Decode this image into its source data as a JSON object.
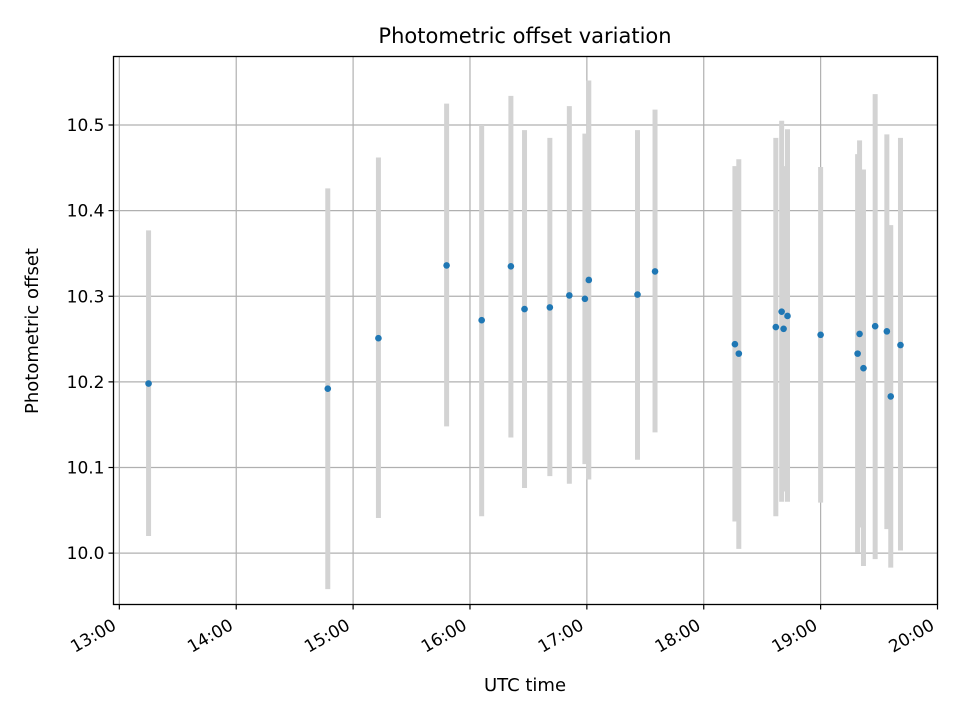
{
  "chart_data": {
    "type": "scatter",
    "title": "Photometric offset variation",
    "xlabel": "UTC time",
    "ylabel": "Photometric offset",
    "x_ticks": [
      "13:00",
      "14:00",
      "15:00",
      "16:00",
      "17:00",
      "18:00",
      "19:00",
      "20:00"
    ],
    "y_ticks": [
      "10.0",
      "10.1",
      "10.2",
      "10.3",
      "10.4",
      "10.5"
    ],
    "xlim": [
      "12:57",
      "20:00"
    ],
    "ylim": [
      9.94,
      10.58
    ],
    "grid": true,
    "series": [
      {
        "marker_color": "#1f77b4",
        "errorbar_color": "#d3d3d3",
        "points": [
          {
            "x": "13:15",
            "y": 10.198,
            "low": 10.02,
            "high": 10.377
          },
          {
            "x": "14:47",
            "y": 10.192,
            "low": 9.958,
            "high": 10.426
          },
          {
            "x": "15:13",
            "y": 10.251,
            "low": 10.041,
            "high": 10.462
          },
          {
            "x": "15:48",
            "y": 10.336,
            "low": 10.148,
            "high": 10.525
          },
          {
            "x": "16:06",
            "y": 10.272,
            "low": 10.043,
            "high": 10.5
          },
          {
            "x": "16:21",
            "y": 10.335,
            "low": 10.135,
            "high": 10.534
          },
          {
            "x": "16:28",
            "y": 10.285,
            "low": 10.076,
            "high": 10.494
          },
          {
            "x": "16:41",
            "y": 10.287,
            "low": 10.09,
            "high": 10.485
          },
          {
            "x": "16:51",
            "y": 10.301,
            "low": 10.081,
            "high": 10.522
          },
          {
            "x": "16:59",
            "y": 10.297,
            "low": 10.104,
            "high": 10.49
          },
          {
            "x": "17:01",
            "y": 10.319,
            "low": 10.086,
            "high": 10.552
          },
          {
            "x": "17:26",
            "y": 10.302,
            "low": 10.109,
            "high": 10.494
          },
          {
            "x": "17:35",
            "y": 10.329,
            "low": 10.141,
            "high": 10.518
          },
          {
            "x": "18:16",
            "y": 10.244,
            "low": 10.037,
            "high": 10.452
          },
          {
            "x": "18:18",
            "y": 10.233,
            "low": 10.005,
            "high": 10.46
          },
          {
            "x": "18:37",
            "y": 10.264,
            "low": 10.043,
            "high": 10.485
          },
          {
            "x": "18:40",
            "y": 10.282,
            "low": 10.06,
            "high": 10.505
          },
          {
            "x": "18:41",
            "y": 10.262,
            "low": 10.072,
            "high": 10.452
          },
          {
            "x": "18:43",
            "y": 10.277,
            "low": 10.06,
            "high": 10.495
          },
          {
            "x": "19:00",
            "y": 10.255,
            "low": 10.059,
            "high": 10.451
          },
          {
            "x": "19:19",
            "y": 10.233,
            "low": 10.001,
            "high": 10.466
          },
          {
            "x": "19:20",
            "y": 10.256,
            "low": 10.03,
            "high": 10.482
          },
          {
            "x": "19:22",
            "y": 10.216,
            "low": 9.985,
            "high": 10.448
          },
          {
            "x": "19:28",
            "y": 10.265,
            "low": 9.993,
            "high": 10.536
          },
          {
            "x": "19:34",
            "y": 10.259,
            "low": 10.028,
            "high": 10.489
          },
          {
            "x": "19:36",
            "y": 10.183,
            "low": 9.983,
            "high": 10.383
          },
          {
            "x": "19:41",
            "y": 10.243,
            "low": 10.003,
            "high": 10.485
          }
        ]
      }
    ]
  }
}
